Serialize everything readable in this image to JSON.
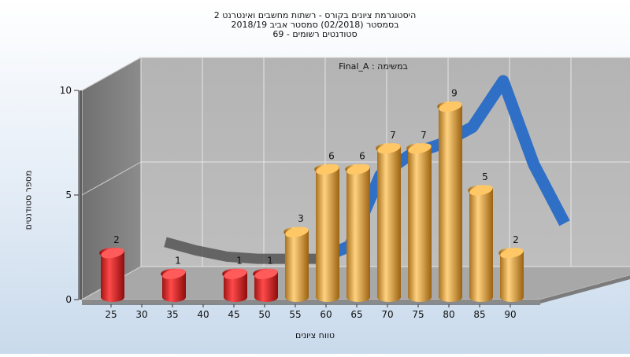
{
  "chart_data": {
    "type": "bar",
    "title": [
      "היסטוגרמת ציונים בקורס - רשתות מחשבים ואינטרנט 2",
      "בסמסטר (02/2018) סמסטר אביב 2018/19",
      "סטודנטים רשומים - 69"
    ],
    "annotation": "Final_A : במשימה",
    "xlabel": "טווח ציונים",
    "ylabel": "מספר סטודנטים",
    "categories": [
      "25",
      "30",
      "35",
      "40",
      "45",
      "50",
      "55",
      "60",
      "65",
      "70",
      "75",
      "80",
      "85",
      "90"
    ],
    "values": [
      2,
      0,
      1,
      0,
      1,
      1,
      3,
      6,
      6,
      7,
      7,
      9,
      5,
      2
    ],
    "ylim": [
      0,
      10
    ],
    "yticks": [
      0,
      5,
      10
    ],
    "fail_threshold": 55,
    "colors": {
      "fail": "#e02020",
      "pass": "#f0a830",
      "curve": "#2f6fc6",
      "curve_shadow": "#555555"
    },
    "trend": {
      "name": "",
      "x": [
        30,
        35,
        40,
        45,
        50,
        55,
        60,
        65,
        70,
        75,
        80,
        85,
        90,
        95
      ],
      "values": [
        2.3,
        1.9,
        1.6,
        1.5,
        1.5,
        1.5,
        2.1,
        5.5,
        6.5,
        7.0,
        7.8,
        10.0,
        6.0,
        3.2
      ]
    }
  }
}
